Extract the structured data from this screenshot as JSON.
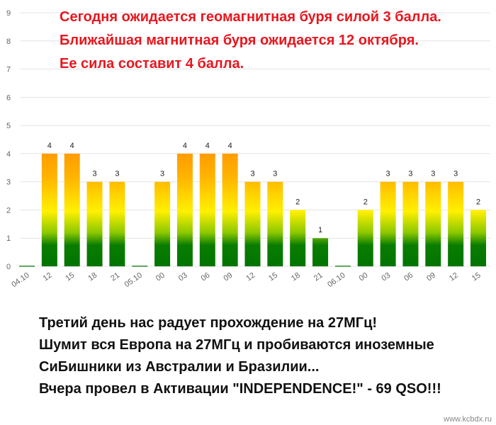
{
  "chart_data": {
    "type": "bar",
    "annotations": [
      "Сегодня ожидается геомагнитная буря силой 3 балла.",
      "Ближайшая магнитная буря ожидается 12 октября.",
      "Ее сила составит 4 балла.",
      "Третий день нас радует прохождение на 27МГц!",
      "Шумит вся Европа на 27МГц и пробиваются иноземные",
      "СиБишники из Австралии и Бразилии...",
      "Вчера провел в Активации \"INDEPENDENCE!\" - 69 QSO!!!",
      "www.kcbdx.ru"
    ],
    "categories": [
      "04.10",
      "12",
      "15",
      "18",
      "21",
      "05.10",
      "00",
      "03",
      "06",
      "09",
      "12",
      "15",
      "18",
      "21",
      "06.10",
      "00",
      "03",
      "06",
      "09",
      "12",
      "15"
    ],
    "values": [
      0,
      4,
      4,
      3,
      3,
      0,
      3,
      4,
      4,
      4,
      3,
      3,
      2,
      1,
      0,
      2,
      3,
      3,
      3,
      3,
      2
    ],
    "ylim": [
      0,
      9
    ],
    "yticks": [
      0,
      1,
      2,
      3,
      4,
      5,
      6,
      7,
      8,
      9
    ],
    "grid": true
  }
}
